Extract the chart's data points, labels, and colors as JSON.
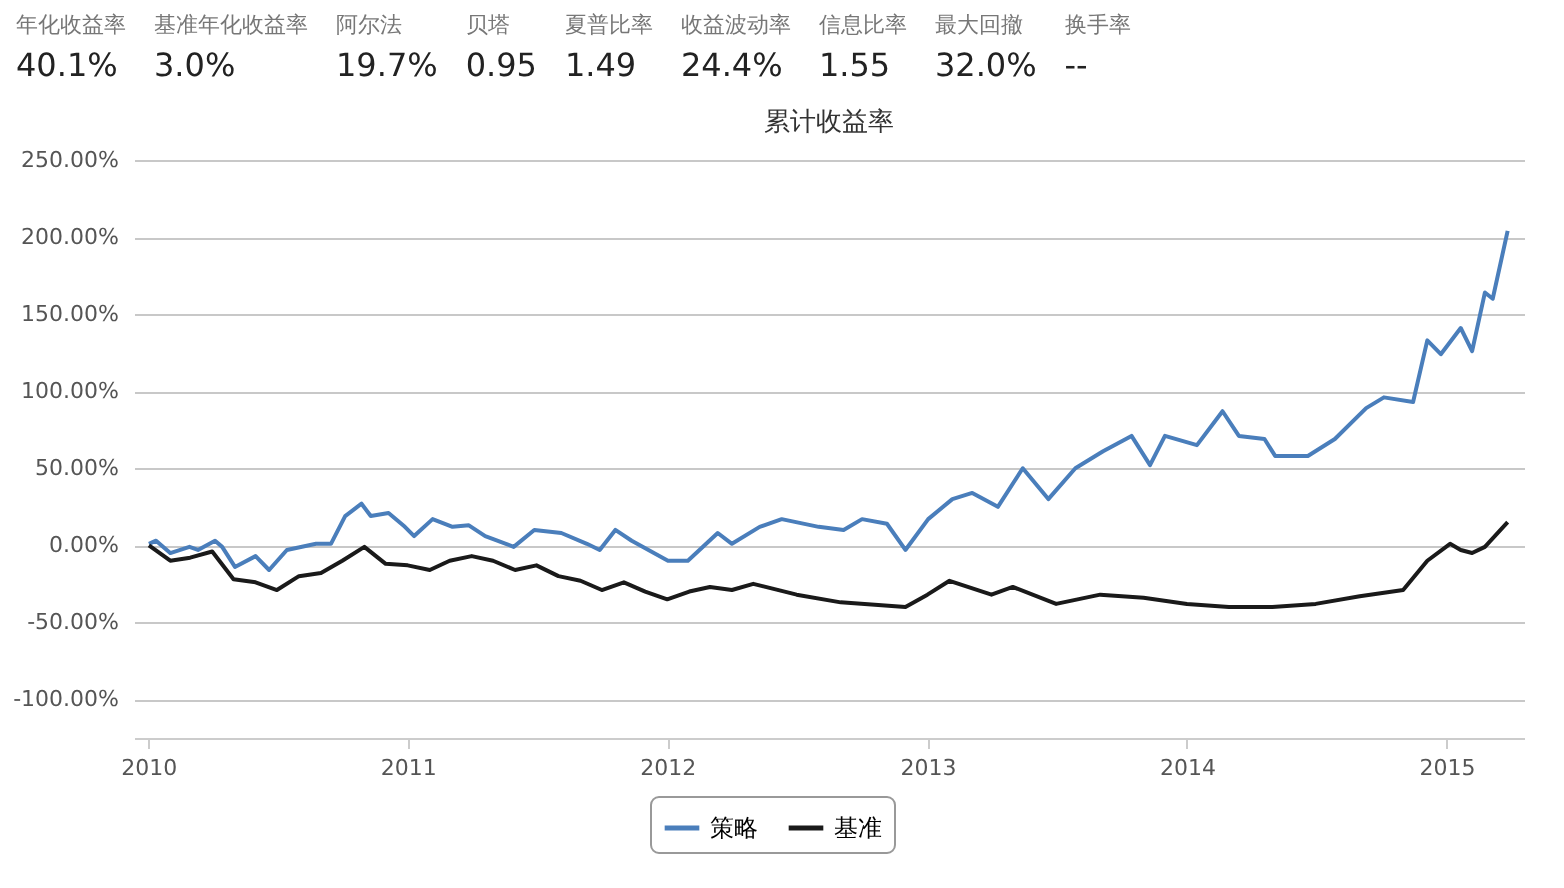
{
  "chart_data": [
    {
      "type": "other",
      "annotations": [
        "年化收益率",
        "40.1%",
        "基准年化收益率",
        "3.0%",
        "阿尔法",
        "19.7%",
        "贝塔",
        "0.95",
        "夏普比率",
        "1.49",
        "收益波动率",
        "24.4%",
        "信息比率",
        "1.55",
        "最大回撤",
        "32.0%",
        "换手率",
        "--"
      ]
    },
    {
      "type": "line",
      "title": "累计收益率",
      "legend": "bottom",
      "grid": "y",
      "line_style": "solid",
      "xlim": [
        "2009-12-12",
        "2015-04-20"
      ],
      "xticks": [
        "2010",
        "2011",
        "2012",
        "2013",
        "2014",
        "2015"
      ],
      "ylim": [
        -125,
        250
      ],
      "yticks": [
        {
          "value": -100,
          "label": "-100.00%"
        },
        {
          "value": -50,
          "label": "-50.00%"
        },
        {
          "value": 0,
          "label": "0.00%"
        },
        {
          "value": 50,
          "label": "50.00%"
        },
        {
          "value": 100,
          "label": "100.00%"
        },
        {
          "value": 150,
          "label": "150.00%"
        },
        {
          "value": 200,
          "label": "200.00%"
        },
        {
          "value": 250,
          "label": "250.00%"
        }
      ],
      "series": [
        {
          "name": "策略",
          "color": "#4a7ebb",
          "x": [
            "2010-01-02",
            "2010-01-12",
            "2010-02-01",
            "2010-02-28",
            "2010-03-12",
            "2010-04-05",
            "2010-04-15",
            "2010-05-03",
            "2010-06-01",
            "2010-06-20",
            "2010-07-15",
            "2010-08-25",
            "2010-09-15",
            "2010-10-05",
            "2010-10-28",
            "2010-11-10",
            "2010-12-05",
            "2010-12-28",
            "2011-01-10",
            "2011-02-05",
            "2011-03-05",
            "2011-03-28",
            "2011-04-20",
            "2011-05-30",
            "2011-06-28",
            "2011-08-05",
            "2011-09-10",
            "2011-09-28",
            "2011-10-20",
            "2011-11-12",
            "2012-01-02",
            "2012-01-30",
            "2012-03-12",
            "2012-04-01",
            "2012-05-10",
            "2012-06-10",
            "2012-08-01",
            "2012-09-05",
            "2012-10-01",
            "2012-11-05",
            "2012-12-01",
            "2013-01-02",
            "2013-02-05",
            "2013-03-05",
            "2013-04-10",
            "2013-05-15",
            "2013-06-20",
            "2013-07-28",
            "2013-09-05",
            "2013-10-15",
            "2013-11-10",
            "2013-12-01",
            "2014-01-15",
            "2014-02-20",
            "2014-03-15",
            "2014-04-20",
            "2014-05-05",
            "2014-06-20",
            "2014-07-28",
            "2014-09-10",
            "2014-10-05",
            "2014-11-15",
            "2014-12-05",
            "2014-12-24",
            "2015-01-21",
            "2015-02-06",
            "2015-02-24",
            "2015-03-07",
            "2015-03-28"
          ],
          "values": [
            1,
            3,
            -5,
            -1,
            -3,
            3,
            -1,
            -14,
            -7,
            -16,
            -3,
            1,
            1,
            19,
            27,
            19,
            21,
            12,
            6,
            17,
            12,
            13,
            6,
            -1,
            10,
            8,
            1,
            -3,
            10,
            3,
            -10,
            -10,
            8,
            1,
            12,
            17,
            12,
            10,
            17,
            14,
            -3,
            17,
            30,
            34,
            25,
            50,
            30,
            50,
            61,
            71,
            52,
            71,
            65,
            87,
            71,
            69,
            58,
            58,
            69,
            89,
            96,
            93,
            133,
            124,
            141,
            126,
            164,
            160,
            204
          ]
        },
        {
          "name": "基准",
          "color": "#1a1a1a",
          "x": [
            "2010-01-02",
            "2010-02-01",
            "2010-03-01",
            "2010-04-01",
            "2010-05-01",
            "2010-06-01",
            "2010-07-01",
            "2010-08-01",
            "2010-09-01",
            "2010-10-01",
            "2010-11-01",
            "2010-12-01",
            "2011-01-01",
            "2011-02-01",
            "2011-03-01",
            "2011-04-01",
            "2011-05-01",
            "2011-06-01",
            "2011-07-01",
            "2011-08-01",
            "2011-09-01",
            "2011-10-01",
            "2011-11-01",
            "2011-12-01",
            "2012-01-01",
            "2012-02-01",
            "2012-03-01",
            "2012-04-01",
            "2012-05-01",
            "2012-07-01",
            "2012-09-01",
            "2012-12-01",
            "2013-01-01",
            "2013-02-01",
            "2013-04-01",
            "2013-05-01",
            "2013-07-01",
            "2013-09-01",
            "2013-11-01",
            "2014-01-01",
            "2014-03-01",
            "2014-05-01",
            "2014-07-01",
            "2014-09-01",
            "2014-11-01",
            "2014-12-05",
            "2015-01-06",
            "2015-01-21",
            "2015-02-06",
            "2015-02-24",
            "2015-03-28"
          ],
          "values": [
            0,
            -10,
            -8,
            -4,
            -22,
            -24,
            -29,
            -20,
            -18,
            -10,
            -1,
            -12,
            -13,
            -16,
            -10,
            -7,
            -10,
            -16,
            -13,
            -20,
            -23,
            -29,
            -24,
            -30,
            -35,
            -30,
            -27,
            -29,
            -25,
            -32,
            -37,
            -40,
            -32,
            -23,
            -32,
            -27,
            -38,
            -32,
            -34,
            -38,
            -40,
            -40,
            -38,
            -33,
            -29,
            -10,
            1,
            -3,
            -5,
            -1,
            15
          ]
        }
      ]
    }
  ]
}
